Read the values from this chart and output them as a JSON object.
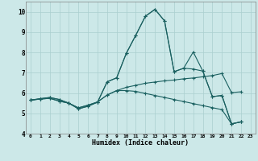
{
  "xlabel": "Humidex (Indice chaleur)",
  "xlim_min": -0.5,
  "xlim_max": 23.5,
  "ylim_min": 4,
  "ylim_max": 10.5,
  "xtick_labels": [
    "0",
    "1",
    "2",
    "3",
    "4",
    "5",
    "6",
    "7",
    "8",
    "9",
    "10",
    "11",
    "12",
    "13",
    "14",
    "15",
    "16",
    "17",
    "18",
    "19",
    "20",
    "21",
    "22",
    "23"
  ],
  "ytick_vals": [
    4,
    5,
    6,
    7,
    8,
    9,
    10
  ],
  "bg_color": "#cce8e8",
  "line_color": "#1a6060",
  "grid_color": "#aacfcf",
  "lines": [
    [
      5.65,
      5.72,
      5.78,
      5.68,
      5.5,
      5.22,
      5.35,
      5.55,
      6.55,
      6.75,
      7.95,
      8.85,
      9.78,
      10.12,
      9.55,
      7.05,
      7.22,
      7.18,
      7.08,
      5.82,
      5.88,
      4.48,
      4.58
    ],
    [
      5.65,
      5.72,
      5.78,
      5.68,
      5.5,
      5.22,
      5.35,
      5.55,
      6.55,
      6.75,
      7.95,
      8.85,
      9.78,
      10.12,
      9.55,
      7.05,
      7.22,
      8.02,
      7.08,
      5.82,
      5.88,
      4.48,
      4.58
    ],
    [
      5.65,
      5.7,
      5.74,
      5.6,
      5.5,
      5.27,
      5.4,
      5.56,
      5.9,
      6.12,
      6.28,
      6.38,
      6.48,
      6.54,
      6.6,
      6.64,
      6.7,
      6.74,
      6.8,
      6.86,
      6.96,
      6.02,
      6.06
    ],
    [
      5.65,
      5.7,
      5.74,
      5.6,
      5.5,
      5.27,
      5.4,
      5.56,
      5.9,
      6.12,
      6.12,
      6.08,
      5.98,
      5.88,
      5.78,
      5.68,
      5.58,
      5.48,
      5.38,
      5.28,
      5.18,
      4.48,
      4.58
    ]
  ]
}
